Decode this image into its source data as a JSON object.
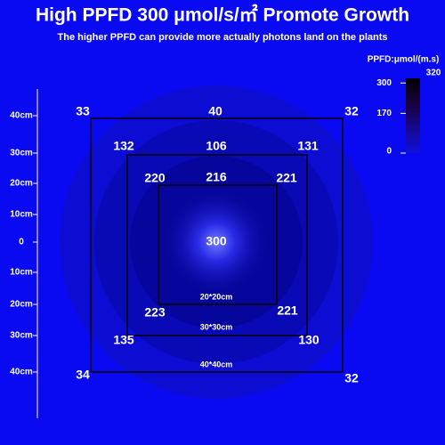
{
  "header": {
    "title": "High PPFD 300 μmol/s/㎡ Promote Growth",
    "subtitle": "The higher PPFD can provide more actually photons land on the plants"
  },
  "legend": {
    "title": "PPFD:μmol/(m.s)",
    "max": 320,
    "ticks": [
      300,
      170,
      0
    ]
  },
  "scale": {
    "labels": [
      "40cm",
      "30cm",
      "20cm",
      "10cm",
      "0",
      "10cm",
      "20cm",
      "30cm",
      "40cm"
    ]
  },
  "center": 300,
  "squares": [
    {
      "label": "20*20cm",
      "top": [
        220,
        216,
        221
      ],
      "bottom": [
        223,
        221
      ]
    },
    {
      "label": "30*30cm",
      "top": [
        132,
        106,
        131
      ],
      "bottom": [
        135,
        130
      ]
    },
    {
      "label": "40*40cm",
      "top": [
        33,
        40,
        32
      ],
      "bottom": [
        34,
        32
      ]
    }
  ]
}
